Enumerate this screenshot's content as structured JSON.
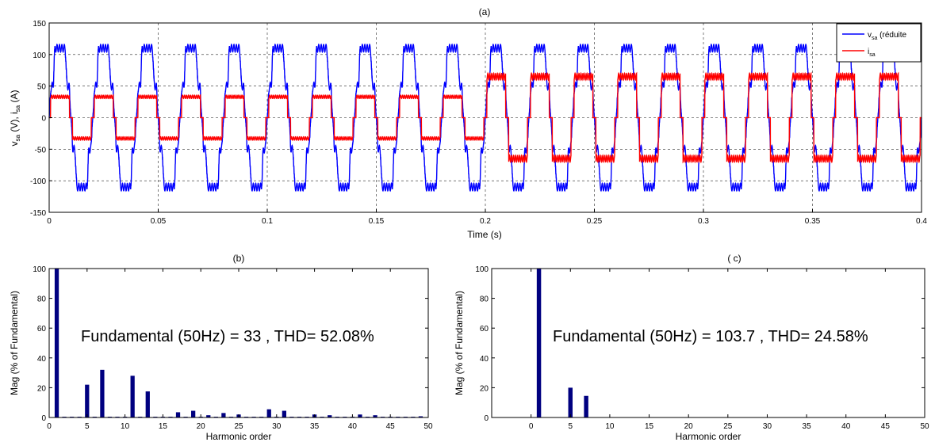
{
  "chart_data": [
    {
      "id": "a",
      "type": "line",
      "title": "(a)",
      "xlabel": "Time (s)",
      "ylabel": "v_sa (V), i_sa (A)",
      "xlim": [
        0,
        0.4
      ],
      "ylim": [
        -150,
        150
      ],
      "xticks": [
        0,
        0.05,
        0.1,
        0.15,
        0.2,
        0.25,
        0.3,
        0.35,
        0.4
      ],
      "yticks": [
        -150,
        -100,
        -50,
        0,
        50,
        100,
        150
      ],
      "xtick_labels": [
        "0",
        "0.05",
        "0.1",
        "0.15",
        "0.2",
        "0.25",
        "0.3",
        "0.35",
        "0.4"
      ],
      "ytick_labels": [
        "-150",
        "-100",
        "-50",
        "0",
        "50",
        "100",
        "150"
      ],
      "grid": true,
      "legend": "top-right",
      "frequency_hz": 50,
      "series": [
        {
          "name": "v_sa (réduite",
          "name_main": "v",
          "name_sub": "sa",
          "name_rest": " (réduite",
          "color": "#0000ff",
          "peak": 110,
          "shoulder": 50
        },
        {
          "name": "i_sa",
          "name_main": "i",
          "name_sub": "sa",
          "color": "#ff0000",
          "segments": [
            {
              "t_start": 0,
              "t_end": 0.2,
              "amplitude": 33
            },
            {
              "t_start": 0.2,
              "t_end": 0.4,
              "amplitude": 65
            }
          ]
        }
      ]
    },
    {
      "id": "b",
      "type": "bar",
      "title": "(b)",
      "xlabel": "Harmonic order",
      "ylabel": "Mag (% of Fundamental)",
      "xlim": [
        0,
        50
      ],
      "ylim": [
        0,
        100
      ],
      "xticks": [
        0,
        5,
        10,
        15,
        20,
        25,
        30,
        35,
        40,
        45,
        50
      ],
      "yticks": [
        0,
        20,
        40,
        60,
        80,
        100
      ],
      "grid": false,
      "color": "#000080",
      "annotation": "Fundamental (50Hz) = 33 , THD= 52.08%",
      "harmonics": [
        1,
        2,
        3,
        4,
        5,
        6,
        7,
        8,
        9,
        10,
        11,
        12,
        13,
        14,
        15,
        16,
        17,
        18,
        19,
        20,
        21,
        22,
        23,
        24,
        25,
        26,
        27,
        28,
        29,
        30,
        31,
        32,
        33,
        34,
        35,
        36,
        37,
        38,
        39,
        40,
        41,
        42,
        43,
        44,
        45,
        46,
        47,
        48,
        49
      ],
      "values": [
        100,
        0.5,
        0.5,
        0.5,
        22,
        0.5,
        32,
        0.5,
        0.5,
        0.5,
        28,
        0.5,
        17.5,
        0.5,
        0.5,
        0.5,
        3.5,
        0.5,
        4.5,
        0.5,
        1.5,
        0.5,
        3,
        0.5,
        2,
        0.5,
        0.5,
        0.5,
        5.5,
        0.5,
        4.5,
        0.5,
        0.5,
        0.5,
        2,
        0.5,
        1.5,
        0.5,
        0.5,
        0.5,
        2,
        0.5,
        1.5,
        0.5,
        0.5,
        0.5,
        0.5,
        0.5,
        0.8
      ]
    },
    {
      "id": "c",
      "type": "bar",
      "title": "( c)",
      "xlabel": "Harmonic order",
      "ylabel": "Mag (% of Fundamental)",
      "xlim": [
        -5,
        50
      ],
      "ylim": [
        0,
        100
      ],
      "xticks": [
        0,
        5,
        10,
        15,
        20,
        25,
        30,
        35,
        40,
        45,
        50
      ],
      "yticks": [
        0,
        20,
        40,
        60,
        80,
        100
      ],
      "grid": false,
      "color": "#000080",
      "annotation": "Fundamental (50Hz) = 103.7 , THD= 24.58%",
      "harmonics": [
        1,
        5,
        7
      ],
      "values": [
        100,
        20,
        14.5
      ]
    }
  ]
}
